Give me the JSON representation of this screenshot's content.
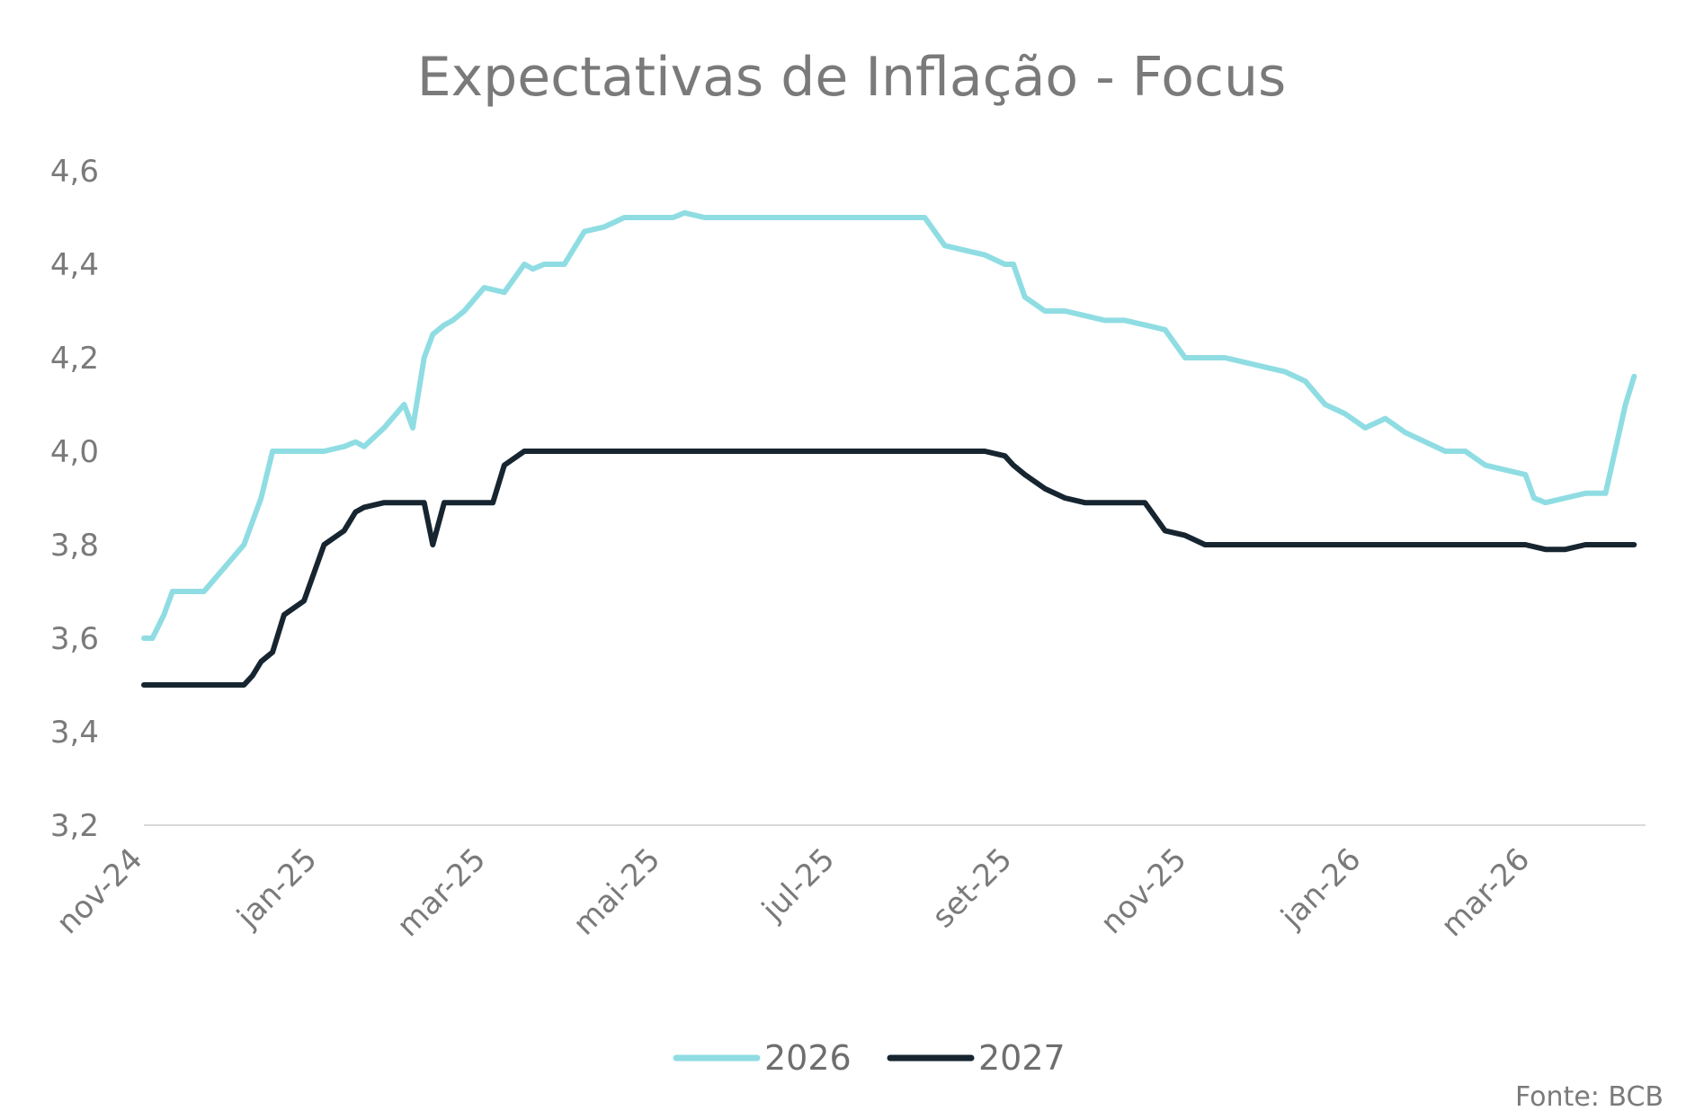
{
  "chart_data": {
    "type": "line",
    "title": "Expectativas de Inflação - Focus",
    "source": "Fonte: BCB",
    "xlabel": "",
    "ylabel": "",
    "ylim": [
      3.2,
      4.6
    ],
    "yticks": [
      "4,6",
      "4,4",
      "4,2",
      "4,0",
      "3,8",
      "3,6",
      "3,4",
      "3,2"
    ],
    "ytick_values": [
      4.6,
      4.4,
      4.2,
      4.0,
      3.8,
      3.6,
      3.4,
      3.2
    ],
    "xlim": [
      "2024-11-01",
      "2026-04-10"
    ],
    "xticks": [
      {
        "label": "nov-24",
        "date": "2024-11-01"
      },
      {
        "label": "jan-25",
        "date": "2025-01-01"
      },
      {
        "label": "mar-25",
        "date": "2025-03-01"
      },
      {
        "label": "mai-25",
        "date": "2025-05-01"
      },
      {
        "label": "jul-25",
        "date": "2025-07-01"
      },
      {
        "label": "set-25",
        "date": "2025-09-01"
      },
      {
        "label": "nov-25",
        "date": "2025-11-01"
      },
      {
        "label": "jan-26",
        "date": "2026-01-01"
      },
      {
        "label": "mar-26",
        "date": "2026-03-01"
      }
    ],
    "grid": false,
    "legend_position": "bottom",
    "series": [
      {
        "name": "2026",
        "color": "#8fdde3",
        "x": [
          "2024-11-01",
          "2024-11-04",
          "2024-11-08",
          "2024-11-11",
          "2024-11-15",
          "2024-11-22",
          "2024-11-29",
          "2024-12-06",
          "2024-12-09",
          "2024-12-12",
          "2024-12-16",
          "2024-12-20",
          "2024-12-27",
          "2025-01-03",
          "2025-01-10",
          "2025-01-14",
          "2025-01-17",
          "2025-01-24",
          "2025-01-31",
          "2025-02-03",
          "2025-02-07",
          "2025-02-10",
          "2025-02-14",
          "2025-02-17",
          "2025-02-21",
          "2025-02-28",
          "2025-03-07",
          "2025-03-14",
          "2025-03-17",
          "2025-03-21",
          "2025-03-28",
          "2025-04-04",
          "2025-04-11",
          "2025-04-18",
          "2025-04-25",
          "2025-05-02",
          "2025-05-05",
          "2025-05-09",
          "2025-05-16",
          "2025-05-23",
          "2025-05-30",
          "2025-06-06",
          "2025-06-13",
          "2025-06-20",
          "2025-06-27",
          "2025-07-04",
          "2025-07-11",
          "2025-07-18",
          "2025-07-25",
          "2025-08-01",
          "2025-08-08",
          "2025-08-15",
          "2025-08-22",
          "2025-08-29",
          "2025-09-01",
          "2025-09-05",
          "2025-09-12",
          "2025-09-19",
          "2025-09-26",
          "2025-10-03",
          "2025-10-10",
          "2025-10-17",
          "2025-10-24",
          "2025-10-31",
          "2025-11-07",
          "2025-11-14",
          "2025-11-21",
          "2025-11-28",
          "2025-12-05",
          "2025-12-12",
          "2025-12-19",
          "2025-12-26",
          "2026-01-02",
          "2026-01-09",
          "2026-01-16",
          "2026-01-23",
          "2026-01-30",
          "2026-02-06",
          "2026-02-13",
          "2026-02-20",
          "2026-02-27",
          "2026-03-02",
          "2026-03-06",
          "2026-03-13",
          "2026-03-20",
          "2026-03-27",
          "2026-04-03",
          "2026-04-06"
        ],
        "values": [
          3.6,
          3.6,
          3.65,
          3.7,
          3.7,
          3.7,
          3.75,
          3.8,
          3.85,
          3.9,
          4.0,
          4.0,
          4.0,
          4.0,
          4.01,
          4.02,
          4.01,
          4.05,
          4.1,
          4.05,
          4.2,
          4.25,
          4.27,
          4.28,
          4.3,
          4.35,
          4.34,
          4.4,
          4.39,
          4.4,
          4.4,
          4.47,
          4.48,
          4.5,
          4.5,
          4.5,
          4.5,
          4.51,
          4.5,
          4.5,
          4.5,
          4.5,
          4.5,
          4.5,
          4.5,
          4.5,
          4.5,
          4.5,
          4.5,
          4.5,
          4.44,
          4.43,
          4.42,
          4.4,
          4.4,
          4.33,
          4.3,
          4.3,
          4.29,
          4.28,
          4.28,
          4.27,
          4.26,
          4.2,
          4.2,
          4.2,
          4.19,
          4.18,
          4.17,
          4.15,
          4.1,
          4.08,
          4.05,
          4.07,
          4.04,
          4.02,
          4.0,
          4.0,
          3.97,
          3.96,
          3.95,
          3.9,
          3.89,
          3.9,
          3.91,
          3.91,
          4.1,
          4.16
        ]
      },
      {
        "name": "2027",
        "color": "#162530",
        "x": [
          "2024-11-01",
          "2024-11-15",
          "2024-11-22",
          "2024-11-29",
          "2024-12-06",
          "2024-12-09",
          "2024-12-12",
          "2024-12-16",
          "2024-12-20",
          "2024-12-27",
          "2025-01-03",
          "2025-01-10",
          "2025-01-14",
          "2025-01-17",
          "2025-01-24",
          "2025-01-31",
          "2025-02-07",
          "2025-02-10",
          "2025-02-14",
          "2025-02-21",
          "2025-02-28",
          "2025-03-03",
          "2025-03-07",
          "2025-03-14",
          "2025-03-21",
          "2025-03-28",
          "2025-04-04",
          "2025-05-02",
          "2025-06-06",
          "2025-07-04",
          "2025-08-01",
          "2025-08-22",
          "2025-08-29",
          "2025-09-01",
          "2025-09-05",
          "2025-09-12",
          "2025-09-19",
          "2025-09-26",
          "2025-10-03",
          "2025-10-10",
          "2025-10-17",
          "2025-10-24",
          "2025-10-31",
          "2025-11-07",
          "2025-12-05",
          "2026-01-09",
          "2026-02-06",
          "2026-02-27",
          "2026-03-06",
          "2026-03-13",
          "2026-03-20",
          "2026-04-06"
        ],
        "values": [
          3.5,
          3.5,
          3.5,
          3.5,
          3.5,
          3.52,
          3.55,
          3.57,
          3.65,
          3.68,
          3.8,
          3.83,
          3.87,
          3.88,
          3.89,
          3.89,
          3.89,
          3.8,
          3.89,
          3.89,
          3.89,
          3.89,
          3.97,
          4.0,
          4.0,
          4.0,
          4.0,
          4.0,
          4.0,
          4.0,
          4.0,
          4.0,
          3.99,
          3.97,
          3.95,
          3.92,
          3.9,
          3.89,
          3.89,
          3.89,
          3.89,
          3.83,
          3.82,
          3.8,
          3.8,
          3.8,
          3.8,
          3.8,
          3.79,
          3.79,
          3.8,
          3.8
        ]
      }
    ]
  }
}
